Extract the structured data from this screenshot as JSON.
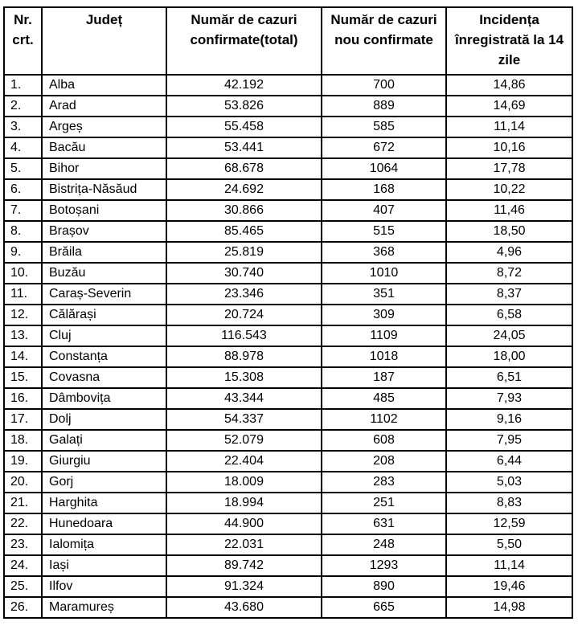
{
  "table": {
    "columns": [
      "Nr. crt.",
      "Județ",
      "Număr de cazuri confirmate(total)",
      "Număr de cazuri nou confirmate",
      "Incidența înregistrată la 14 zile"
    ],
    "rows": [
      {
        "nr": "1.",
        "judet": "Alba",
        "total": "42.192",
        "nou": "700",
        "incidenta": "14,86"
      },
      {
        "nr": "2.",
        "judet": "Arad",
        "total": "53.826",
        "nou": "889",
        "incidenta": "14,69"
      },
      {
        "nr": "3.",
        "judet": "Argeș",
        "total": "55.458",
        "nou": "585",
        "incidenta": "11,14"
      },
      {
        "nr": "4.",
        "judet": "Bacău",
        "total": "53.441",
        "nou": "672",
        "incidenta": "10,16"
      },
      {
        "nr": "5.",
        "judet": "Bihor",
        "total": "68.678",
        "nou": "1064",
        "incidenta": "17,78"
      },
      {
        "nr": "6.",
        "judet": "Bistrița-Năsăud",
        "total": "24.692",
        "nou": "168",
        "incidenta": "10,22"
      },
      {
        "nr": "7.",
        "judet": "Botoșani",
        "total": "30.866",
        "nou": "407",
        "incidenta": "11,46"
      },
      {
        "nr": "8.",
        "judet": "Brașov",
        "total": "85.465",
        "nou": "515",
        "incidenta": "18,50"
      },
      {
        "nr": "9.",
        "judet": "Brăila",
        "total": "25.819",
        "nou": "368",
        "incidenta": "4,96"
      },
      {
        "nr": "10.",
        "judet": "Buzău",
        "total": "30.740",
        "nou": "1010",
        "incidenta": "8,72"
      },
      {
        "nr": "11.",
        "judet": "Caraș-Severin",
        "total": "23.346",
        "nou": "351",
        "incidenta": "8,37"
      },
      {
        "nr": "12.",
        "judet": "Călărași",
        "total": "20.724",
        "nou": "309",
        "incidenta": "6,58"
      },
      {
        "nr": "13.",
        "judet": "Cluj",
        "total": "116.543",
        "nou": "1109",
        "incidenta": "24,05"
      },
      {
        "nr": "14.",
        "judet": "Constanța",
        "total": "88.978",
        "nou": "1018",
        "incidenta": "18,00"
      },
      {
        "nr": "15.",
        "judet": "Covasna",
        "total": "15.308",
        "nou": "187",
        "incidenta": "6,51"
      },
      {
        "nr": "16.",
        "judet": "Dâmbovița",
        "total": "43.344",
        "nou": "485",
        "incidenta": "7,93"
      },
      {
        "nr": "17.",
        "judet": "Dolj",
        "total": "54.337",
        "nou": "1102",
        "incidenta": "9,16"
      },
      {
        "nr": "18.",
        "judet": "Galați",
        "total": "52.079",
        "nou": "608",
        "incidenta": "7,95"
      },
      {
        "nr": "19.",
        "judet": "Giurgiu",
        "total": "22.404",
        "nou": "208",
        "incidenta": "6,44"
      },
      {
        "nr": "20.",
        "judet": "Gorj",
        "total": "18.009",
        "nou": "283",
        "incidenta": "5,03"
      },
      {
        "nr": "21.",
        "judet": "Harghita",
        "total": "18.994",
        "nou": "251",
        "incidenta": "8,83"
      },
      {
        "nr": "22.",
        "judet": "Hunedoara",
        "total": "44.900",
        "nou": "631",
        "incidenta": "12,59"
      },
      {
        "nr": "23.",
        "judet": "Ialomița",
        "total": "22.031",
        "nou": "248",
        "incidenta": "5,50"
      },
      {
        "nr": "24.",
        "judet": "Iași",
        "total": "89.742",
        "nou": "1293",
        "incidenta": "11,14"
      },
      {
        "nr": "25.",
        "judet": "Ilfov",
        "total": "91.324",
        "nou": "890",
        "incidenta": "19,46"
      },
      {
        "nr": "26.",
        "judet": "Maramureș",
        "total": "43.680",
        "nou": "665",
        "incidenta": "14,98"
      }
    ]
  }
}
